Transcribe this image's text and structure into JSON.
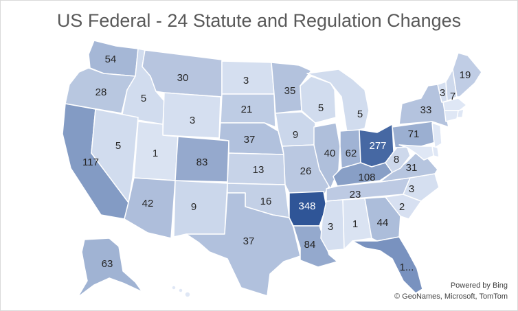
{
  "title": "US Federal - 24 Statute and Regulation Changes",
  "attribution": {
    "line1": "Powered by Bing",
    "line2": "© GeoNames, Microsoft, TomTom"
  },
  "colors": {
    "scale": [
      "#dfe7f5",
      "#2f5597"
    ],
    "label_dark": "#262626",
    "label_light": "#ffffff"
  },
  "chart_data": {
    "type": "choropleth",
    "region": "United States",
    "max_value": 348,
    "states": [
      {
        "id": "WA",
        "label": "54",
        "value": 54
      },
      {
        "id": "OR",
        "label": "28",
        "value": 28
      },
      {
        "id": "CA",
        "label": "117",
        "value": 117
      },
      {
        "id": "ID",
        "label": "5",
        "value": 5
      },
      {
        "id": "NV",
        "label": "5",
        "value": 5
      },
      {
        "id": "MT",
        "label": "30",
        "value": 30
      },
      {
        "id": "WY",
        "label": "3",
        "value": 3
      },
      {
        "id": "UT",
        "label": "1",
        "value": 1
      },
      {
        "id": "AZ",
        "label": "42",
        "value": 42
      },
      {
        "id": "CO",
        "label": "83",
        "value": 83
      },
      {
        "id": "NM",
        "label": "9",
        "value": 9
      },
      {
        "id": "ND",
        "label": "3",
        "value": 3
      },
      {
        "id": "SD",
        "label": "21",
        "value": 21
      },
      {
        "id": "NE",
        "label": "37",
        "value": 37
      },
      {
        "id": "KS",
        "label": "13",
        "value": 13
      },
      {
        "id": "OK",
        "label": "16",
        "value": 16
      },
      {
        "id": "TX",
        "label": "37",
        "value": 37
      },
      {
        "id": "MN",
        "label": "35",
        "value": 35
      },
      {
        "id": "IA",
        "label": "9",
        "value": 9
      },
      {
        "id": "MO",
        "label": "26",
        "value": 26
      },
      {
        "id": "AR",
        "label": "348",
        "value": 348
      },
      {
        "id": "LA",
        "label": "84",
        "value": 84
      },
      {
        "id": "WI",
        "label": "5",
        "value": 5
      },
      {
        "id": "IL",
        "label": "40",
        "value": 40
      },
      {
        "id": "MI",
        "label": "5",
        "value": 5
      },
      {
        "id": "IN",
        "label": "62",
        "value": 62
      },
      {
        "id": "OH",
        "label": "277",
        "value": 277
      },
      {
        "id": "KY",
        "label": "108",
        "value": 108
      },
      {
        "id": "TN",
        "label": "23",
        "value": 23
      },
      {
        "id": "MS",
        "label": "3",
        "value": 3
      },
      {
        "id": "AL",
        "label": "1",
        "value": 1
      },
      {
        "id": "GA",
        "label": "44",
        "value": 44
      },
      {
        "id": "FL",
        "label": "1...",
        "value": null
      },
      {
        "id": "SC",
        "label": "2",
        "value": 2
      },
      {
        "id": "NC",
        "label": "3",
        "value": 3
      },
      {
        "id": "VA",
        "label": "31",
        "value": 31
      },
      {
        "id": "WV",
        "label": "8",
        "value": 8
      },
      {
        "id": "PA",
        "label": "71",
        "value": 71
      },
      {
        "id": "NY",
        "label": "33",
        "value": 33
      },
      {
        "id": "VT",
        "label": "3",
        "value": 3
      },
      {
        "id": "NH",
        "label": "7",
        "value": 7
      },
      {
        "id": "ME",
        "label": "19",
        "value": 19
      },
      {
        "id": "MA",
        "label": "",
        "value": null
      },
      {
        "id": "CT",
        "label": "",
        "value": null
      },
      {
        "id": "RI",
        "label": "",
        "value": null
      },
      {
        "id": "NJ",
        "label": "",
        "value": null
      },
      {
        "id": "DE",
        "label": "",
        "value": null
      },
      {
        "id": "MD",
        "label": "",
        "value": null
      },
      {
        "id": "AK",
        "label": "63",
        "value": 63
      },
      {
        "id": "HI",
        "label": "",
        "value": null
      }
    ]
  }
}
